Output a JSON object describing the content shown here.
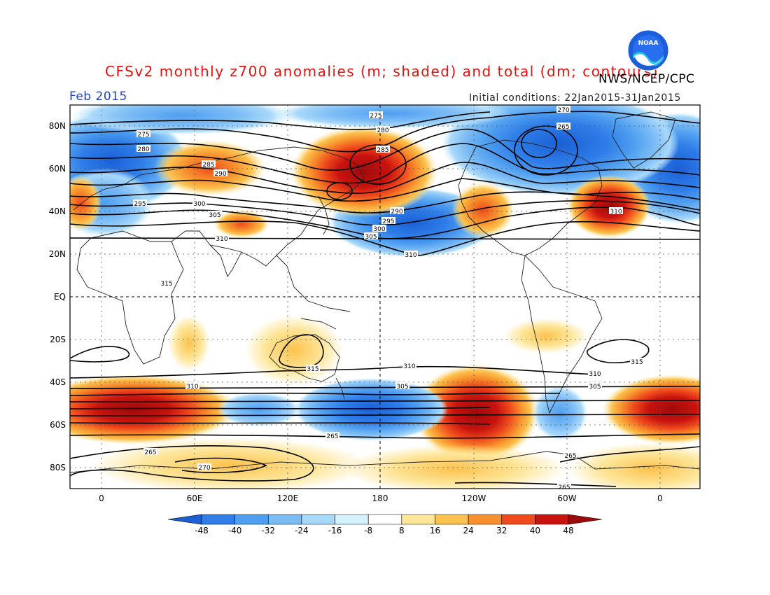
{
  "title": "CFSv2 monthly z700 anomalies (m; shaded) and total (dm; contours)",
  "org": "NWS/NCEP/CPC",
  "logo_text": "NOAA",
  "month": "Feb 2015",
  "initial_conditions": "Initial conditions: 22Jan2015-31Jan2015",
  "lat_labels": [
    "80N",
    "60N",
    "40N",
    "20N",
    "EQ",
    "20S",
    "40S",
    "60S",
    "80S"
  ],
  "lon_labels": [
    "0",
    "60E",
    "120E",
    "180",
    "120W",
    "60W",
    "0"
  ],
  "colorbar": {
    "ticks": [
      "-48",
      "-40",
      "-32",
      "-24",
      "-16",
      "-8",
      "8",
      "16",
      "24",
      "32",
      "40",
      "48"
    ],
    "colors": [
      "#1a5fd6",
      "#2f7ee8",
      "#4f9ef0",
      "#7cbcf5",
      "#a8d8fa",
      "#d4f2fc",
      "#ffffff",
      "#fde69a",
      "#fcc24e",
      "#f7902d",
      "#ef4a1c",
      "#c9130f",
      "#9e0a0a"
    ]
  },
  "contour_labels": [
    "275",
    "280",
    "285",
    "290",
    "295",
    "300",
    "305",
    "310",
    "315",
    "270",
    "265",
    "275",
    "280",
    "285",
    "290",
    "295",
    "300",
    "305",
    "310",
    "315",
    "270",
    "265"
  ],
  "anomaly_features": [
    {
      "name": "north-pacific-high",
      "sign": "positive",
      "max": "48"
    },
    {
      "name": "south-pacific-high",
      "sign": "positive",
      "max": "48"
    },
    {
      "name": "arctic-canada-low",
      "sign": "negative",
      "max": "-48"
    },
    {
      "name": "north-atlantic-high",
      "sign": "positive",
      "max": "40"
    },
    {
      "name": "central-pacific-low",
      "sign": "negative",
      "max": "-40"
    }
  ]
}
